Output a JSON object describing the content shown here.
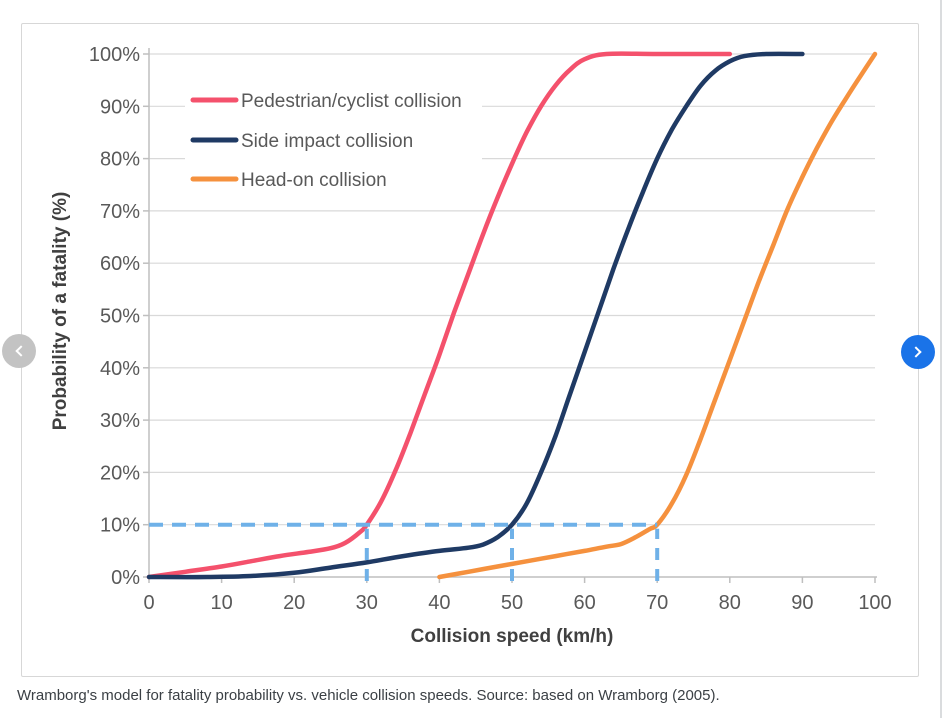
{
  "figure": {
    "caption": "Wramborg's model for fatality probability vs. vehicle collision speeds. Source: based on Wramborg (2005)."
  },
  "carousel": {
    "prev_icon": "chevron-left-icon",
    "next_icon": "chevron-right-icon",
    "prev_color": "#c3c3c3",
    "next_color": "#1a73e8"
  },
  "chart_data": {
    "type": "line",
    "title": "",
    "xlabel": "Collision speed (km/h)",
    "ylabel": "Probability of a fatality (%)",
    "xlim": [
      0,
      100
    ],
    "ylim": [
      0,
      100
    ],
    "x_ticks": [
      0,
      10,
      20,
      30,
      40,
      50,
      60,
      70,
      80,
      90,
      100
    ],
    "y_ticks": [
      "0%",
      "10%",
      "20%",
      "30%",
      "40%",
      "50%",
      "60%",
      "70%",
      "80%",
      "90%",
      "100%"
    ],
    "grid": "horizontal",
    "legend_position": "top-left-inside",
    "colors": {
      "grid": "#d9d9d9",
      "axis": "#bfbfbf",
      "tick_text": "#595959",
      "axis_title_text": "#404040",
      "legend_text": "#595959",
      "background": "#ffffff"
    },
    "series": [
      {
        "name": "Pedestrian/cyclist collision",
        "color": "#f4516c",
        "points": [
          [
            0,
            0
          ],
          [
            5,
            1
          ],
          [
            10,
            2
          ],
          [
            14,
            3
          ],
          [
            18,
            4
          ],
          [
            22,
            4.8
          ],
          [
            25,
            5.5
          ],
          [
            27,
            6.5
          ],
          [
            29,
            8.5
          ],
          [
            30,
            10
          ],
          [
            32,
            14.5
          ],
          [
            34,
            20.5
          ],
          [
            36,
            27.5
          ],
          [
            38,
            35
          ],
          [
            40,
            42.5
          ],
          [
            42,
            50.5
          ],
          [
            44,
            58
          ],
          [
            46,
            65.5
          ],
          [
            48,
            72.5
          ],
          [
            50,
            79
          ],
          [
            52,
            85
          ],
          [
            54,
            90
          ],
          [
            56,
            94
          ],
          [
            58,
            97
          ],
          [
            60,
            99
          ],
          [
            63,
            100
          ],
          [
            70,
            100
          ],
          [
            80,
            100
          ]
        ]
      },
      {
        "name": "Side impact collision",
        "color": "#1f3a64",
        "points": [
          [
            0,
            0
          ],
          [
            8,
            0
          ],
          [
            14,
            0.2
          ],
          [
            20,
            0.8
          ],
          [
            25,
            1.8
          ],
          [
            30,
            2.8
          ],
          [
            35,
            4
          ],
          [
            40,
            5
          ],
          [
            44,
            5.6
          ],
          [
            46,
            6.2
          ],
          [
            48,
            7.6
          ],
          [
            50,
            10
          ],
          [
            52,
            14
          ],
          [
            54,
            20
          ],
          [
            56,
            27
          ],
          [
            58,
            35
          ],
          [
            60,
            43
          ],
          [
            62,
            51
          ],
          [
            64,
            59
          ],
          [
            66,
            66.5
          ],
          [
            68,
            73.5
          ],
          [
            70,
            80
          ],
          [
            72,
            85.5
          ],
          [
            74,
            90
          ],
          [
            76,
            94
          ],
          [
            78,
            96.8
          ],
          [
            80,
            98.6
          ],
          [
            82,
            99.6
          ],
          [
            85,
            100
          ],
          [
            90,
            100
          ]
        ]
      },
      {
        "name": "Head-on collision",
        "color": "#f5913e",
        "points": [
          [
            40,
            0
          ],
          [
            44,
            1
          ],
          [
            48,
            2
          ],
          [
            52,
            3
          ],
          [
            56,
            4
          ],
          [
            60,
            5
          ],
          [
            63,
            5.8
          ],
          [
            65,
            6.3
          ],
          [
            67,
            7.6
          ],
          [
            69,
            9.2
          ],
          [
            70,
            10
          ],
          [
            72,
            14
          ],
          [
            74,
            19.5
          ],
          [
            76,
            26.5
          ],
          [
            78,
            34
          ],
          [
            80,
            41.5
          ],
          [
            82,
            49
          ],
          [
            84,
            56.5
          ],
          [
            86,
            63.5
          ],
          [
            88,
            70.5
          ],
          [
            90,
            76.5
          ],
          [
            92,
            82
          ],
          [
            94,
            87
          ],
          [
            96,
            91.5
          ],
          [
            98,
            95.8
          ],
          [
            100,
            100
          ]
        ]
      }
    ],
    "reference_lines": {
      "color": "#6fb1e8",
      "horizontal": {
        "y": 10,
        "x_from": 0,
        "x_to": 70
      },
      "verticals": [
        {
          "x": 30,
          "y_from": 0,
          "y_to": 10
        },
        {
          "x": 50,
          "y_from": 0,
          "y_to": 10
        },
        {
          "x": 70,
          "y_from": 0,
          "y_to": 10
        }
      ]
    }
  }
}
